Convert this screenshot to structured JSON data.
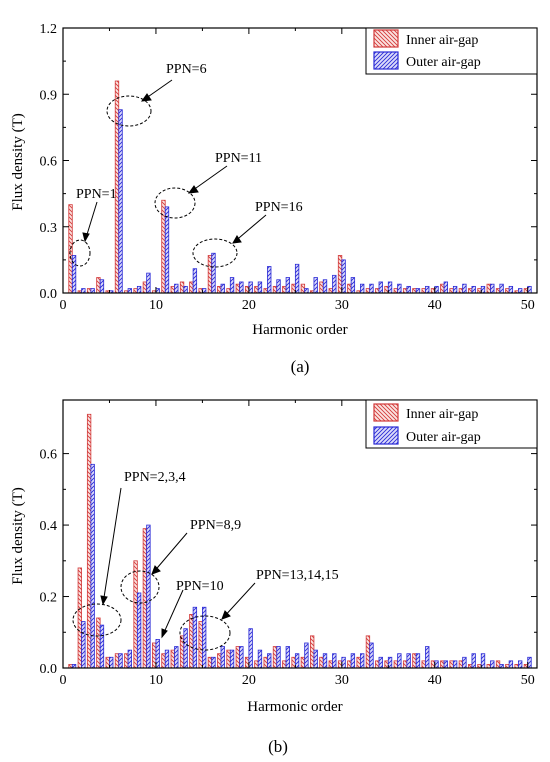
{
  "chart_data": [
    {
      "type": "bar",
      "panel_label": "(a)",
      "xlabel": "Harmonic order",
      "ylabel": "Flux density (T)",
      "xlim": [
        0,
        51
      ],
      "ylim": [
        0,
        1.2
      ],
      "xticks": [
        0,
        10,
        20,
        30,
        40,
        50
      ],
      "yticks": [
        0.0,
        0.3,
        0.6,
        0.9,
        1.2
      ],
      "ytick_labels": [
        "0.0",
        "0.3",
        "0.6",
        "0.9",
        "1.2"
      ],
      "legend_position": "top-right",
      "x": [
        1,
        2,
        3,
        4,
        5,
        6,
        7,
        8,
        9,
        10,
        11,
        12,
        13,
        14,
        15,
        16,
        17,
        18,
        19,
        20,
        21,
        22,
        23,
        24,
        25,
        26,
        27,
        28,
        29,
        30,
        31,
        32,
        33,
        34,
        35,
        36,
        37,
        38,
        39,
        40,
        41,
        42,
        43,
        44,
        45,
        46,
        47,
        48,
        49,
        50
      ],
      "series": [
        {
          "name": "Inner air-gap",
          "values": [
            0.4,
            0.01,
            0.02,
            0.07,
            0.01,
            0.96,
            0.01,
            0.02,
            0.05,
            0.01,
            0.42,
            0.03,
            0.05,
            0.05,
            0.02,
            0.17,
            0.03,
            0.02,
            0.04,
            0.03,
            0.03,
            0.02,
            0.03,
            0.03,
            0.04,
            0.04,
            0.01,
            0.05,
            0.02,
            0.17,
            0.04,
            0.01,
            0.02,
            0.02,
            0.03,
            0.02,
            0.02,
            0.02,
            0.02,
            0.02,
            0.04,
            0.02,
            0.02,
            0.02,
            0.02,
            0.04,
            0.02,
            0.02,
            0.01,
            0.02
          ]
        },
        {
          "name": "Outer air-gap",
          "values": [
            0.17,
            0.02,
            0.02,
            0.06,
            0.01,
            0.83,
            0.02,
            0.03,
            0.09,
            0.02,
            0.39,
            0.04,
            0.03,
            0.11,
            0.02,
            0.18,
            0.04,
            0.07,
            0.05,
            0.05,
            0.05,
            0.12,
            0.06,
            0.07,
            0.13,
            0.02,
            0.07,
            0.06,
            0.08,
            0.15,
            0.07,
            0.04,
            0.04,
            0.05,
            0.05,
            0.04,
            0.03,
            0.02,
            0.03,
            0.03,
            0.05,
            0.03,
            0.04,
            0.03,
            0.03,
            0.04,
            0.04,
            0.03,
            0.02,
            0.03
          ]
        }
      ],
      "annotations": [
        "PPN=1",
        "PPN=6",
        "PPN=11",
        "PPN=16"
      ]
    },
    {
      "type": "bar",
      "panel_label": "(b)",
      "xlabel": "Harmonic order",
      "ylabel": "Flux density (T)",
      "xlim": [
        0,
        51
      ],
      "ylim": [
        0,
        0.75
      ],
      "xticks": [
        0,
        10,
        20,
        30,
        40,
        50
      ],
      "yticks": [
        0.0,
        0.2,
        0.4,
        0.6
      ],
      "ytick_labels": [
        "0.0",
        "0.2",
        "0.4",
        "0.6"
      ],
      "legend_position": "top-right",
      "x": [
        1,
        2,
        3,
        4,
        5,
        6,
        7,
        8,
        9,
        10,
        11,
        12,
        13,
        14,
        15,
        16,
        17,
        18,
        19,
        20,
        21,
        22,
        23,
        24,
        25,
        26,
        27,
        28,
        29,
        30,
        31,
        32,
        33,
        34,
        35,
        36,
        37,
        38,
        39,
        40,
        41,
        42,
        43,
        44,
        45,
        46,
        47,
        48,
        49,
        50
      ],
      "series": [
        {
          "name": "Inner air-gap",
          "values": [
            0.01,
            0.28,
            0.71,
            0.14,
            0.03,
            0.04,
            0.04,
            0.3,
            0.39,
            0.07,
            0.04,
            0.05,
            0.09,
            0.15,
            0.13,
            0.03,
            0.04,
            0.05,
            0.06,
            0.03,
            0.02,
            0.03,
            0.06,
            0.02,
            0.03,
            0.03,
            0.09,
            0.03,
            0.02,
            0.02,
            0.02,
            0.03,
            0.09,
            0.02,
            0.02,
            0.02,
            0.02,
            0.04,
            0.02,
            0.02,
            0.02,
            0.02,
            0.02,
            0.01,
            0.01,
            0.01,
            0.02,
            0.01,
            0.01,
            0.01
          ]
        },
        {
          "name": "Outer air-gap",
          "values": [
            0.01,
            0.13,
            0.57,
            0.12,
            0.03,
            0.04,
            0.05,
            0.21,
            0.4,
            0.08,
            0.05,
            0.06,
            0.11,
            0.17,
            0.17,
            0.03,
            0.06,
            0.05,
            0.06,
            0.11,
            0.05,
            0.04,
            0.06,
            0.06,
            0.04,
            0.07,
            0.05,
            0.04,
            0.04,
            0.03,
            0.04,
            0.04,
            0.07,
            0.03,
            0.03,
            0.04,
            0.04,
            0.04,
            0.06,
            0.02,
            0.02,
            0.02,
            0.03,
            0.04,
            0.04,
            0.02,
            0.01,
            0.02,
            0.02,
            0.03
          ]
        }
      ],
      "annotations": [
        "PPN=2,3,4",
        "PPN=8,9",
        "PPN=10",
        "PPN=13,14,15"
      ]
    }
  ],
  "colors": {
    "inner": "#d33a3a",
    "inner_fill": "#fbe4e1",
    "outer": "#2a2ad6",
    "outer_fill": "#dcdcfa",
    "axis": "#000000"
  }
}
